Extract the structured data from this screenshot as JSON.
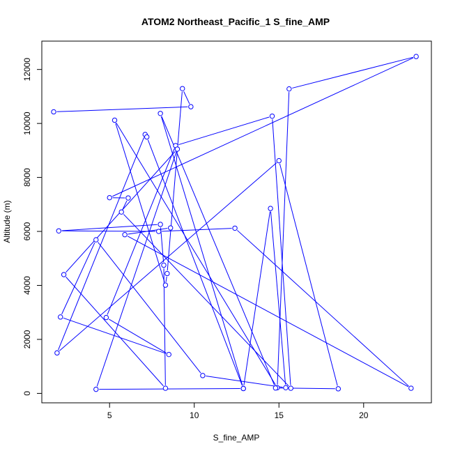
{
  "chart_data": {
    "type": "line",
    "title": "ATOM2 Northeast_Pacific_1 S_fine_AMP",
    "xlabel": "S_fine_AMP",
    "ylabel": "Altitude (m)",
    "xlim": [
      1.0,
      24.0
    ],
    "ylim": [
      -350,
      13050
    ],
    "xticks": [
      5,
      10,
      15,
      20
    ],
    "yticks": [
      0,
      2000,
      4000,
      6000,
      8000,
      10000,
      12000
    ],
    "grid": false,
    "legend": "none",
    "color": "#0000ff",
    "series": [
      {
        "x": [
          1.7,
          9.8,
          9.3,
          8.4,
          8.3,
          5.3,
          14.9,
          15.6,
          23.1,
          5.0,
          6.1,
          5.7,
          15.7,
          14.6,
          8.9,
          4.8,
          8.5,
          2.1,
          4.2,
          10.5,
          15.4,
          14.5,
          12.9,
          8.0,
          14.8,
          18.5,
          15.0,
          1.9,
          7.1,
          7.2,
          12.9,
          4.2,
          9.0,
          2.3,
          8.3,
          8.2,
          8.0,
          2.0,
          7.9,
          12.4,
          22.8,
          5.9,
          8.6
        ],
        "y": [
          10430,
          10620,
          11290,
          4440,
          4010,
          10120,
          210,
          11280,
          12480,
          7250,
          7240,
          6720,
          190,
          10270,
          9180,
          2810,
          1440,
          2830,
          5690,
          660,
          210,
          6850,
          180,
          10370,
          200,
          170,
          8620,
          1500,
          9590,
          9500,
          180,
          150,
          9050,
          4400,
          190,
          4750,
          6260,
          6020,
          6000,
          6120,
          190,
          5880,
          6130
        ]
      }
    ]
  }
}
